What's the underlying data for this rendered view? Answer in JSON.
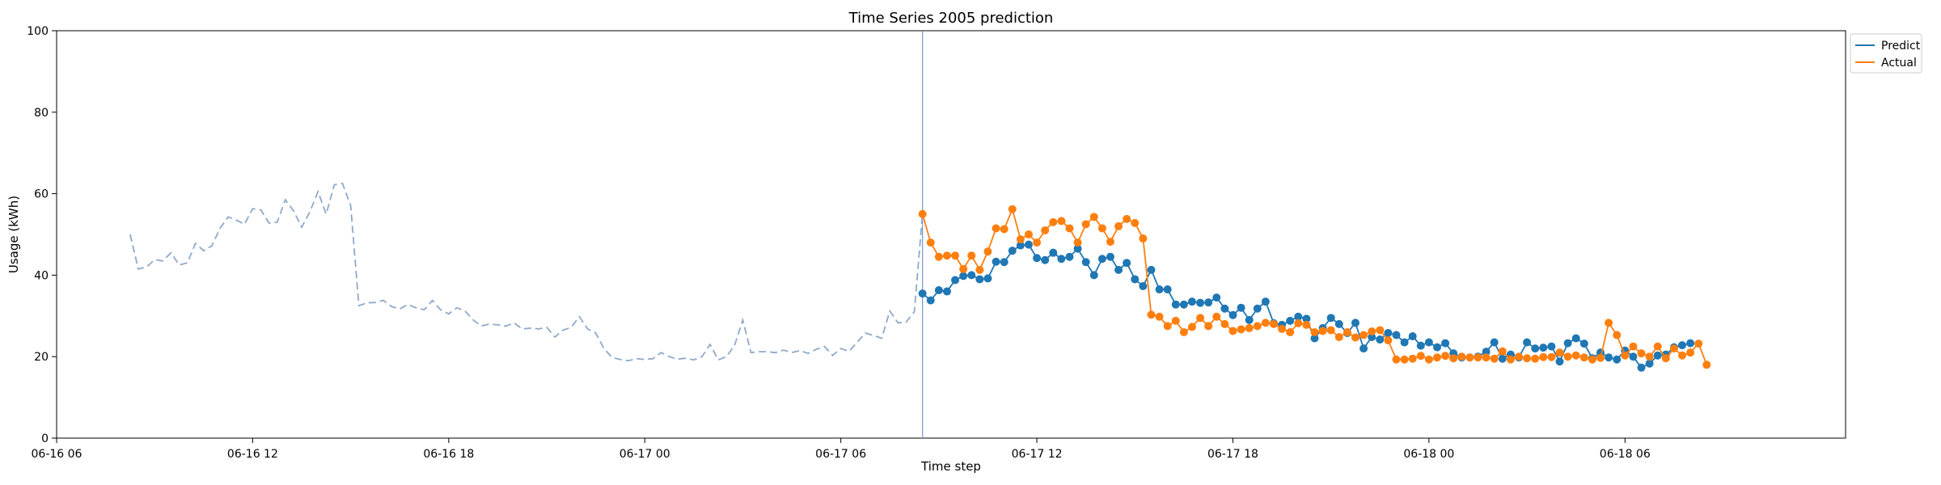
{
  "chart_data": {
    "type": "line",
    "title": "Time Series 2005 prediction",
    "xlabel": "Time step",
    "ylabel": "Usage (kWh)",
    "ylim": [
      0,
      100
    ],
    "yticks": [
      0,
      20,
      40,
      60,
      80,
      100
    ],
    "xlim": [
      "2025-06-16 06:00",
      "2025-06-18 12:45"
    ],
    "xticks": [
      {
        "t": "2025-06-16 06:00",
        "label": "06-16 06"
      },
      {
        "t": "2025-06-16 12:00",
        "label": "06-16 12"
      },
      {
        "t": "2025-06-16 18:00",
        "label": "06-16 18"
      },
      {
        "t": "2025-06-17 00:00",
        "label": "06-17 00"
      },
      {
        "t": "2025-06-17 06:00",
        "label": "06-17 06"
      },
      {
        "t": "2025-06-17 12:00",
        "label": "06-17 12"
      },
      {
        "t": "2025-06-17 18:00",
        "label": "06-17 18"
      },
      {
        "t": "2025-06-18 00:00",
        "label": "06-18 00"
      },
      {
        "t": "2025-06-18 06:00",
        "label": "06-18 06"
      }
    ],
    "history": {
      "x_start": "2025-06-16 08:15",
      "interval_minutes": 15,
      "values": [
        50.0,
        41.5,
        42.0,
        43.8,
        43.5,
        45.5,
        42.5,
        43.0,
        47.8,
        46.0,
        47.2,
        51.5,
        54.3,
        53.5,
        52.5,
        56.3,
        56.0,
        52.8,
        53.0,
        58.5,
        55.8,
        51.8,
        55.5,
        60.5,
        55.0,
        62.2,
        62.5,
        57.0,
        32.5,
        33.2,
        33.3,
        33.8,
        32.3,
        31.7,
        32.8,
        32.0,
        31.5,
        33.8,
        31.5,
        30.5,
        32.0,
        31.2,
        29.0,
        27.5,
        28.0,
        27.8,
        27.5,
        28.3,
        26.8,
        27.0,
        26.8,
        27.2,
        24.8,
        26.5,
        27.2,
        29.8,
        26.8,
        25.8,
        22.0,
        19.8,
        19.3,
        19.0,
        19.5,
        19.3,
        19.5,
        21.0,
        20.0,
        19.4,
        19.6,
        19.2,
        20.0,
        23.0,
        19.2,
        20.0,
        22.8,
        29.0,
        21.0,
        21.2,
        21.2,
        21.0,
        21.6,
        21.0,
        21.5,
        20.8,
        21.8,
        22.5,
        20.3,
        22.0,
        21.3,
        23.5,
        25.8,
        25.2,
        24.5,
        31.2,
        28.3,
        28.5,
        31.0,
        55.0
      ]
    },
    "forecast_start": "2025-06-17 08:30",
    "forecast_interval_minutes": 15,
    "series": [
      {
        "name": "Predict",
        "color": "#1f77b4",
        "values": [
          35.5,
          33.8,
          36.3,
          36.0,
          38.8,
          39.8,
          40.0,
          39.0,
          39.2,
          43.3,
          43.2,
          46.0,
          47.3,
          47.5,
          44.2,
          43.7,
          45.5,
          44.0,
          44.5,
          46.5,
          43.2,
          40.0,
          44.0,
          44.5,
          41.3,
          43.0,
          39.0,
          37.3,
          41.3,
          36.5,
          36.5,
          32.8,
          32.8,
          33.5,
          33.2,
          33.3,
          34.5,
          31.8,
          30.2,
          32.0,
          29.0,
          31.8,
          33.5,
          28.2,
          27.8,
          28.8,
          29.8,
          29.3,
          24.5,
          27.0,
          29.5,
          28.0,
          25.8,
          28.3,
          22.0,
          24.8,
          24.2,
          25.8,
          25.3,
          23.5,
          25.0,
          22.7,
          23.5,
          22.3,
          23.3,
          20.8,
          19.8,
          19.8,
          20.0,
          21.2,
          23.5,
          19.5,
          20.5,
          19.8,
          23.5,
          22.0,
          22.2,
          22.5,
          18.8,
          23.3,
          24.5,
          23.2,
          19.6,
          21.0,
          19.8,
          19.3,
          21.5,
          20.0,
          17.3,
          18.3,
          20.3,
          20.5,
          22.3,
          22.8,
          23.3
        ]
      },
      {
        "name": "Actual",
        "color": "#ff7f0e",
        "values": [
          55.0,
          48.0,
          44.5,
          44.8,
          44.8,
          41.5,
          44.8,
          41.3,
          45.8,
          51.5,
          51.3,
          56.2,
          48.8,
          50.0,
          48.0,
          51.0,
          53.0,
          53.3,
          51.5,
          48.0,
          52.5,
          54.3,
          51.5,
          48.2,
          52.0,
          53.8,
          52.8,
          49.0,
          30.3,
          29.8,
          27.5,
          28.8,
          26.0,
          27.3,
          29.5,
          27.5,
          29.8,
          28.0,
          26.3,
          26.7,
          27.0,
          27.5,
          28.3,
          28.0,
          26.8,
          26.0,
          28.2,
          27.8,
          26.0,
          26.3,
          26.5,
          24.8,
          26.0,
          24.7,
          25.3,
          26.2,
          26.5,
          24.0,
          19.3,
          19.3,
          19.5,
          20.2,
          19.3,
          19.8,
          20.2,
          19.6,
          20.0,
          19.8,
          19.8,
          19.8,
          19.5,
          21.3,
          19.3,
          20.0,
          19.6,
          19.5,
          19.9,
          19.9,
          21.0,
          20.0,
          20.3,
          19.8,
          19.3,
          19.7,
          28.3,
          25.3,
          20.3,
          22.5,
          20.8,
          20.0,
          22.5,
          19.6,
          22.0,
          20.3,
          21.0,
          23.2,
          18.0
        ]
      }
    ],
    "legend": {
      "position": "top-right-outside",
      "entries": [
        "Predict",
        "Actual"
      ]
    },
    "grid": false
  }
}
